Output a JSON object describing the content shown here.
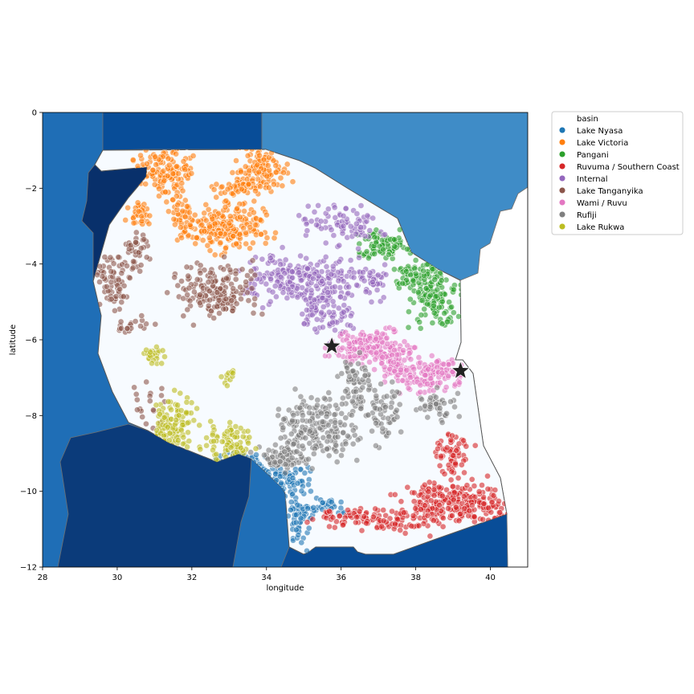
{
  "chart_data": {
    "type": "scatter",
    "title": "",
    "xlabel": "longitude",
    "ylabel": "latitude",
    "xlim": [
      28,
      41
    ],
    "ylim": [
      -12,
      0
    ],
    "x_ticks": [
      28,
      30,
      32,
      34,
      36,
      38,
      40
    ],
    "y_ticks": [
      0,
      -2,
      -4,
      -6,
      -8,
      -10,
      -12
    ],
    "x_tick_labels": [
      "28",
      "30",
      "32",
      "34",
      "36",
      "38",
      "40"
    ],
    "y_tick_labels": [
      "0",
      "−2",
      "−4",
      "−6",
      "−8",
      "−10",
      "−12"
    ],
    "grid": false,
    "legend_title": "basin",
    "legend_position": "outside-top-right",
    "background_map": "Tanzania and neighbouring countries in shades of blue",
    "series": [
      {
        "name": "Lake Nyasa",
        "color": "#1f77b4",
        "regions": [
          {
            "cx": 33.4,
            "cy": -9.35,
            "rx": 0.55,
            "ry": 0.25,
            "n": 110
          },
          {
            "cx": 34.5,
            "cy": -9.7,
            "rx": 0.5,
            "ry": 0.3,
            "n": 80
          },
          {
            "cx": 34.9,
            "cy": -10.7,
            "rx": 0.3,
            "ry": 0.6,
            "n": 60
          },
          {
            "cx": 35.7,
            "cy": -10.4,
            "rx": 0.35,
            "ry": 0.2,
            "n": 25
          }
        ]
      },
      {
        "name": "Lake Victoria",
        "color": "#ff7f0e",
        "regions": [
          {
            "cx": 31.3,
            "cy": -1.6,
            "rx": 0.6,
            "ry": 0.55,
            "n": 140
          },
          {
            "cx": 33.8,
            "cy": -1.5,
            "rx": 0.6,
            "ry": 0.45,
            "n": 110
          },
          {
            "cx": 32.9,
            "cy": -3.0,
            "rx": 0.9,
            "ry": 0.5,
            "n": 220
          },
          {
            "cx": 30.6,
            "cy": -2.7,
            "rx": 0.25,
            "ry": 0.3,
            "n": 35
          },
          {
            "cx": 33.3,
            "cy": -2.0,
            "rx": 0.6,
            "ry": 0.15,
            "n": 50
          },
          {
            "cx": 31.7,
            "cy": -2.7,
            "rx": 0.25,
            "ry": 0.3,
            "n": 30
          }
        ]
      },
      {
        "name": "Pangani",
        "color": "#2ca02c",
        "regions": [
          {
            "cx": 37.2,
            "cy": -3.5,
            "rx": 0.6,
            "ry": 0.3,
            "n": 90
          },
          {
            "cx": 38.5,
            "cy": -4.9,
            "rx": 0.5,
            "ry": 0.6,
            "n": 130
          },
          {
            "cx": 37.9,
            "cy": -4.2,
            "rx": 0.4,
            "ry": 0.3,
            "n": 50
          }
        ]
      },
      {
        "name": "Ruvuma / Southern Coast",
        "color": "#d62728",
        "regions": [
          {
            "cx": 39.1,
            "cy": -10.3,
            "rx": 1.2,
            "ry": 0.45,
            "n": 260
          },
          {
            "cx": 39.0,
            "cy": -9.0,
            "rx": 0.4,
            "ry": 0.4,
            "n": 60
          },
          {
            "cx": 37.5,
            "cy": -10.8,
            "rx": 1.0,
            "ry": 0.3,
            "n": 80
          },
          {
            "cx": 36.0,
            "cy": -10.7,
            "rx": 0.7,
            "ry": 0.2,
            "n": 40
          }
        ]
      },
      {
        "name": "Internal",
        "color": "#9467bd",
        "regions": [
          {
            "cx": 35.0,
            "cy": -4.4,
            "rx": 1.3,
            "ry": 0.55,
            "n": 240
          },
          {
            "cx": 36.0,
            "cy": -2.9,
            "rx": 0.9,
            "ry": 0.45,
            "n": 80
          },
          {
            "cx": 35.6,
            "cy": -5.3,
            "rx": 0.6,
            "ry": 0.6,
            "n": 80
          },
          {
            "cx": 36.8,
            "cy": -4.4,
            "rx": 0.45,
            "ry": 0.35,
            "n": 40
          }
        ]
      },
      {
        "name": "Lake Tanganyika",
        "color": "#8c564b",
        "regions": [
          {
            "cx": 32.6,
            "cy": -4.7,
            "rx": 0.8,
            "ry": 0.55,
            "n": 170
          },
          {
            "cx": 29.9,
            "cy": -4.5,
            "rx": 0.35,
            "ry": 0.6,
            "n": 70
          },
          {
            "cx": 30.5,
            "cy": -3.6,
            "rx": 0.3,
            "ry": 0.5,
            "n": 40
          },
          {
            "cx": 30.4,
            "cy": -5.6,
            "rx": 0.4,
            "ry": 0.2,
            "n": 20
          },
          {
            "cx": 30.8,
            "cy": -7.8,
            "rx": 0.3,
            "ry": 0.6,
            "n": 20
          }
        ]
      },
      {
        "name": "Wami / Ruvu",
        "color": "#e377c2",
        "regions": [
          {
            "cx": 36.8,
            "cy": -6.2,
            "rx": 0.8,
            "ry": 0.4,
            "n": 170
          },
          {
            "cx": 38.4,
            "cy": -6.9,
            "rx": 0.8,
            "ry": 0.4,
            "n": 140
          },
          {
            "cx": 37.5,
            "cy": -6.6,
            "rx": 0.4,
            "ry": 0.4,
            "n": 60
          }
        ]
      },
      {
        "name": "Rufiji",
        "color": "#7f7f7f",
        "regions": [
          {
            "cx": 35.4,
            "cy": -8.3,
            "rx": 0.8,
            "ry": 0.7,
            "n": 200
          },
          {
            "cx": 34.4,
            "cy": -9.1,
            "rx": 0.5,
            "ry": 0.3,
            "n": 70
          },
          {
            "cx": 36.4,
            "cy": -7.3,
            "rx": 0.4,
            "ry": 0.6,
            "n": 70
          },
          {
            "cx": 37.2,
            "cy": -8.0,
            "rx": 0.45,
            "ry": 0.6,
            "n": 60
          },
          {
            "cx": 38.5,
            "cy": -7.7,
            "rx": 0.45,
            "ry": 0.3,
            "n": 45
          }
        ]
      },
      {
        "name": "Lake Rukwa",
        "color": "#bcbd22",
        "regions": [
          {
            "cx": 31.5,
            "cy": -8.2,
            "rx": 0.5,
            "ry": 0.6,
            "n": 110
          },
          {
            "cx": 33.0,
            "cy": -8.7,
            "rx": 0.5,
            "ry": 0.4,
            "n": 80
          },
          {
            "cx": 31.0,
            "cy": -6.4,
            "rx": 0.3,
            "ry": 0.2,
            "n": 25
          },
          {
            "cx": 33.0,
            "cy": -7.0,
            "rx": 0.2,
            "ry": 0.2,
            "n": 12
          }
        ]
      }
    ],
    "markers": [
      {
        "symbol": "star",
        "x": 35.75,
        "y": -6.17,
        "color": "#222222"
      },
      {
        "symbol": "star",
        "x": 39.2,
        "y": -6.82,
        "color": "#222222"
      }
    ]
  }
}
